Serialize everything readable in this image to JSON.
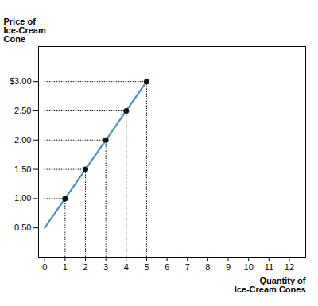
{
  "chart_data": {
    "type": "line",
    "xlabel": "Quantity of\nIce-Cream Cones",
    "ylabel": "Price of\nIce-Cream\nCone",
    "x": [
      0,
      1,
      2,
      3,
      4,
      5
    ],
    "values": [
      0.5,
      1.0,
      1.5,
      2.0,
      2.5,
      3.0
    ],
    "color": "#4A8EC2",
    "points": {
      "x": [
        1,
        2,
        3,
        4,
        5
      ],
      "values": [
        1.0,
        1.5,
        2.0,
        2.5,
        3.0
      ],
      "color": "#111111",
      "marker": "circle"
    },
    "guides": {
      "x": [
        1,
        2,
        3,
        4,
        5
      ],
      "values": [
        1.0,
        1.5,
        2.0,
        2.5,
        3.0
      ],
      "color": "#111111",
      "line_style": "dotted"
    },
    "xlim": [
      -0.3,
      12.8
    ],
    "ylim": [
      0.0,
      3.6
    ],
    "xticks": [
      0,
      1,
      2,
      3,
      4,
      5,
      6,
      7,
      8,
      9,
      10,
      11,
      12
    ],
    "yticks": [
      {
        "value": 0.5,
        "label": "0.50"
      },
      {
        "value": 1.0,
        "label": "1.00"
      },
      {
        "value": 1.5,
        "label": "1.50"
      },
      {
        "value": 2.0,
        "label": "2.00"
      },
      {
        "value": 2.5,
        "label": "2.50"
      },
      {
        "value": 3.0,
        "label": "$3.00"
      }
    ],
    "grid": false
  }
}
